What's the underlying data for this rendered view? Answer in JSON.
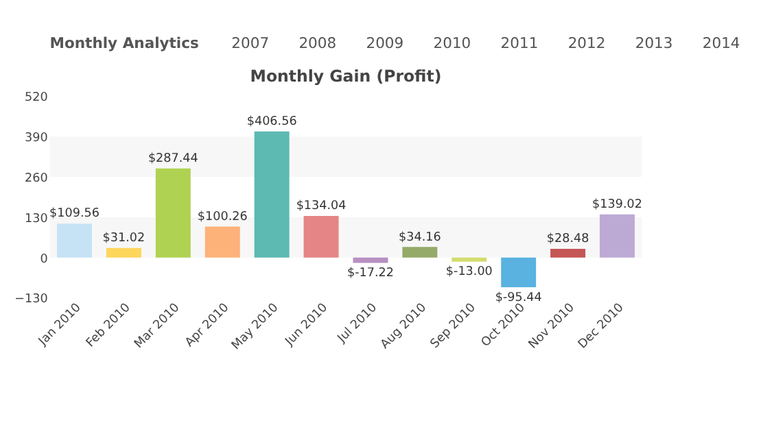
{
  "chart_data": {
    "type": "bar",
    "title": "Monthly Gain (Profit)",
    "annotations": [
      "Monthly Analytics",
      "2007",
      "2008",
      "2009",
      "2010",
      "2011",
      "2012",
      "2013",
      "2014"
    ],
    "categories": [
      "Jan 2010",
      "Feb 2010",
      "Mar 2010",
      "Apr 2010",
      "May 2010",
      "Jun 2010",
      "Jul 2010",
      "Aug 2010",
      "Sep 2010",
      "Oct 2010",
      "Nov 2010",
      "Dec 2010"
    ],
    "values": [
      109.56,
      31.02,
      287.44,
      100.26,
      406.56,
      134.04,
      -17.22,
      34.16,
      -13.0,
      -95.44,
      28.48,
      139.02
    ],
    "value_labels": [
      "$109.56",
      "$31.02",
      "$287.44",
      "$100.26",
      "$406.56",
      "$134.04",
      "$-17.22",
      "$34.16",
      "$-13.00",
      "$-95.44",
      "$28.48",
      "$139.02"
    ],
    "colors": [
      "#c6e2f5",
      "#fdd65c",
      "#b0d252",
      "#fdb27a",
      "#5cbab2",
      "#e58585",
      "#b78fc0",
      "#95aa68",
      "#d3dc6e",
      "#59b2e0",
      "#c55656",
      "#bcaad4"
    ],
    "ylim": [
      -130,
      520
    ],
    "yticks": [
      -130,
      0,
      130,
      260,
      390,
      520
    ],
    "bands": [
      {
        "axis": "y",
        "from": 0,
        "to": 130,
        "color": "#f7f7f7"
      },
      {
        "axis": "y",
        "from": 260,
        "to": 390,
        "color": "#f7f7f7"
      }
    ],
    "grid": false
  }
}
